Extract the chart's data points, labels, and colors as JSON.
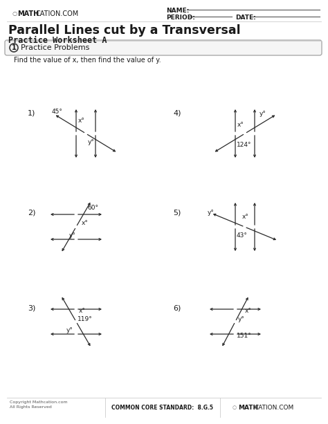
{
  "title": "Parallel Lines cut by a Transversal",
  "subtitle": "Practice Worksheet A",
  "section_title": "Practice Problems",
  "instruction": "Find the value of x, then find the value of y.",
  "background_color": "#ffffff",
  "line_color": "#2a2a2a",
  "text_color": "#1a1a1a",
  "prob1": {
    "label": "1)",
    "angle": "45°",
    "x_lbl": "x°",
    "y_lbl": "y°"
  },
  "prob2": {
    "label": "2)",
    "angle": "60°",
    "x_lbl": "x°",
    "y_lbl": "y°"
  },
  "prob3": {
    "label": "3)",
    "angle": "119°",
    "x_lbl": "x°",
    "y_lbl": "y°"
  },
  "prob4": {
    "label": "4)",
    "angle": "124°",
    "x_lbl": "x°",
    "y_lbl": "y°"
  },
  "prob5": {
    "label": "5)",
    "angle": "43°",
    "x_lbl": "x°",
    "y_lbl": "y°"
  },
  "prob6": {
    "label": "6)",
    "angle": "151°",
    "x_lbl": "x°",
    "y_lbl": "y°"
  },
  "footer_copy": "Copyright Mathcation.com\nAll Rights Reserved",
  "footer_std": "COMMON CORE STANDARD:  8.G.5"
}
